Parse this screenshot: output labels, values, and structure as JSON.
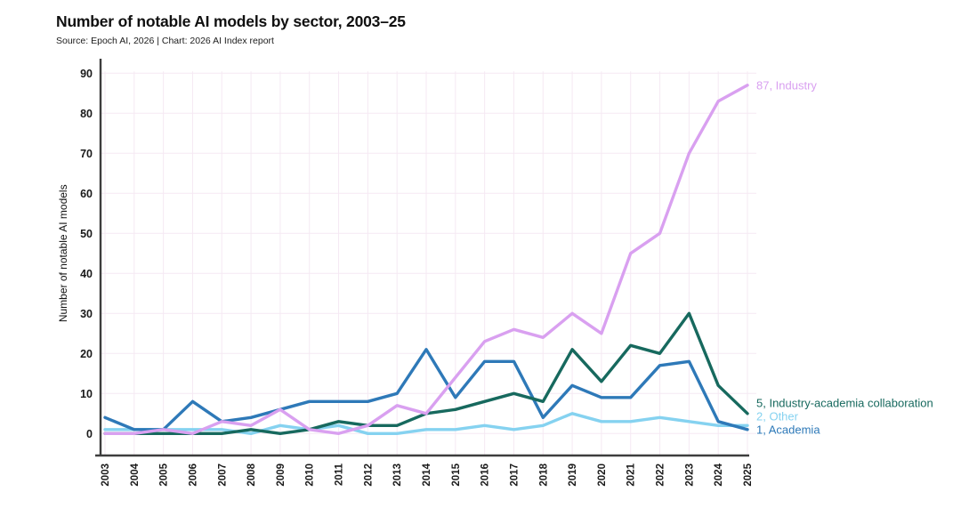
{
  "header": {
    "title": "Number of notable AI models by sector, 2003–25",
    "subtitle": "Source: Epoch AI, 2026 | Chart: 2026 AI Index report"
  },
  "chart_data": {
    "type": "line",
    "title": "Number of notable AI models by sector, 2003–25",
    "subtitle": "Source: Epoch AI, 2026 | Chart: 2026 AI Index report",
    "ylabel": "Number of notable AI models",
    "xlabel": "",
    "ylim": [
      0,
      90
    ],
    "ytick_step": 10,
    "yticks": [
      0,
      10,
      20,
      30,
      40,
      50,
      60,
      70,
      80,
      90
    ],
    "grid": "both-faint",
    "legend_position": "end-of-line-labels",
    "categories": [
      "2003",
      "2004",
      "2005",
      "2006",
      "2007",
      "2008",
      "2009",
      "2010",
      "2011",
      "2012",
      "2013",
      "2014",
      "2015",
      "2016",
      "2017",
      "2018",
      "2019",
      "2020",
      "2021",
      "2022",
      "2023",
      "2024",
      "2025"
    ],
    "series": [
      {
        "name": "Other",
        "color": "#85d2f0",
        "end_label": "2, Other",
        "values": [
          1,
          1,
          1,
          1,
          1,
          0,
          2,
          1,
          2,
          0,
          0,
          1,
          1,
          2,
          1,
          2,
          5,
          3,
          3,
          4,
          3,
          2,
          2
        ]
      },
      {
        "name": "Academia",
        "color": "#2e79b8",
        "end_label": "1, Academia",
        "values": [
          4,
          1,
          1,
          8,
          3,
          4,
          6,
          8,
          8,
          8,
          10,
          21,
          9,
          18,
          18,
          4,
          12,
          9,
          9,
          17,
          18,
          3,
          1
        ]
      },
      {
        "name": "Industry-academia collaboration",
        "color": "#17695e",
        "end_label": "5, Industry-academia collaboration",
        "values": [
          0,
          0,
          0,
          0,
          0,
          1,
          0,
          1,
          3,
          2,
          2,
          5,
          6,
          8,
          10,
          8,
          21,
          13,
          22,
          20,
          30,
          12,
          5
        ]
      },
      {
        "name": "Industry",
        "color": "#d9a0f0",
        "end_label": "87, Industry",
        "values": [
          0,
          0,
          1,
          0,
          3,
          2,
          6,
          1,
          0,
          2,
          7,
          5,
          14,
          23,
          26,
          24,
          30,
          25,
          45,
          50,
          70,
          83,
          87
        ]
      }
    ]
  },
  "colors": {
    "axis": "#3d3d3d",
    "grid": "#f5e9f3",
    "tick_text": "#1a1a1a",
    "industry": "#d9a0f0",
    "collaboration": "#17695e",
    "academia": "#2e79b8",
    "other": "#85d2f0"
  }
}
